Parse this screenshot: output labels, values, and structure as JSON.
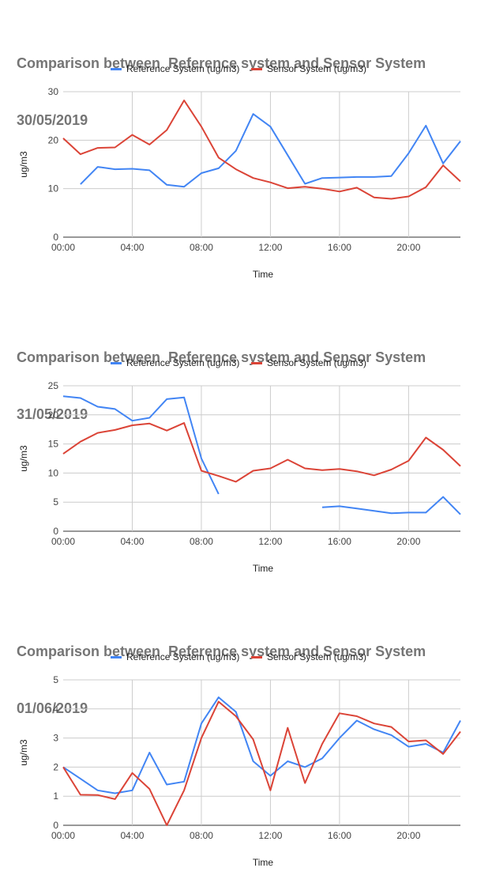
{
  "chart_data": [
    {
      "type": "line",
      "title": "Comparison between  Reference system and Sensor System",
      "subtitle": "30/05/2019",
      "xlabel": "Time",
      "ylabel": "ug/m3",
      "ylim": [
        0,
        30
      ],
      "yticks": [
        "0",
        "10",
        "20",
        "30"
      ],
      "xticks": [
        "00:00",
        "04:00",
        "08:00",
        "12:00",
        "16:00",
        "20:00"
      ],
      "x": [
        0,
        1,
        2,
        3,
        4,
        5,
        6,
        7,
        8,
        9,
        10,
        11,
        12,
        13,
        14,
        15,
        16,
        17,
        18,
        19,
        20,
        21,
        22,
        23
      ],
      "grid": true,
      "legend_position": "top",
      "series": [
        {
          "name": "Reference System (ug/m3)",
          "color": "#4285f4",
          "values": [
            null,
            10.9,
            14.5,
            14.0,
            14.1,
            13.8,
            10.8,
            10.4,
            13.2,
            14.2,
            17.8,
            25.4,
            22.8,
            16.9,
            11.0,
            12.2,
            12.3,
            12.4,
            12.4,
            12.6,
            17.3,
            23.0,
            15.2,
            19.8
          ]
        },
        {
          "name": "Sensor System (ug/m3)",
          "color": "#db4437",
          "values": [
            20.4,
            17.1,
            18.4,
            18.5,
            21.1,
            19.1,
            22.1,
            28.2,
            22.8,
            16.4,
            14.0,
            12.2,
            11.3,
            10.1,
            10.4,
            10.0,
            9.4,
            10.2,
            8.2,
            7.9,
            8.4,
            10.3,
            14.8,
            11.5
          ]
        }
      ]
    },
    {
      "type": "line",
      "title": "Comparison between  Reference system and Sensor System",
      "subtitle": "31/05/2019",
      "xlabel": "Time",
      "ylabel": "ug/m3",
      "ylim": [
        0,
        25
      ],
      "yticks": [
        "0",
        "5",
        "10",
        "15",
        "20",
        "25"
      ],
      "xticks": [
        "00:00",
        "04:00",
        "08:00",
        "12:00",
        "16:00",
        "20:00"
      ],
      "x": [
        0,
        1,
        2,
        3,
        4,
        5,
        6,
        7,
        8,
        9,
        10,
        11,
        12,
        13,
        14,
        15,
        16,
        17,
        18,
        19,
        20,
        21,
        22,
        23
      ],
      "grid": true,
      "legend_position": "top",
      "series": [
        {
          "name": "Reference System (ug/m3)",
          "color": "#4285f4",
          "values": [
            23.2,
            22.9,
            21.4,
            21.0,
            19.0,
            19.5,
            22.7,
            23.0,
            12.5,
            6.4,
            null,
            null,
            null,
            null,
            null,
            4.1,
            4.3,
            3.9,
            3.5,
            3.1,
            3.2,
            3.2,
            5.9,
            2.9
          ]
        },
        {
          "name": "Sensor System (ug/m3)",
          "color": "#db4437",
          "values": [
            13.3,
            15.4,
            16.9,
            17.4,
            18.2,
            18.5,
            17.3,
            18.6,
            10.4,
            9.5,
            8.5,
            10.4,
            10.8,
            12.3,
            10.8,
            10.5,
            10.7,
            10.3,
            9.6,
            10.6,
            12.1,
            16.1,
            14.0,
            11.2
          ]
        }
      ]
    },
    {
      "type": "line",
      "title": "Comparison between  Reference system and Sensor System",
      "subtitle": "01/06/2019",
      "xlabel": "Time",
      "ylabel": "ug/m3",
      "ylim": [
        0,
        5
      ],
      "yticks": [
        "0",
        "1",
        "2",
        "3",
        "4",
        "5"
      ],
      "xticks": [
        "00:00",
        "04:00",
        "08:00",
        "12:00",
        "16:00",
        "20:00"
      ],
      "x": [
        0,
        1,
        2,
        3,
        4,
        5,
        6,
        7,
        8,
        9,
        10,
        11,
        12,
        13,
        14,
        15,
        16,
        17,
        18,
        19,
        20,
        21,
        22,
        23
      ],
      "grid": true,
      "legend_position": "top",
      "series": [
        {
          "name": "Reference System (ug/m3)",
          "color": "#4285f4",
          "values": [
            2.0,
            1.6,
            1.2,
            1.1,
            1.2,
            2.5,
            1.4,
            1.5,
            3.5,
            4.4,
            3.9,
            2.2,
            1.7,
            2.2,
            2.0,
            2.3,
            3.0,
            3.6,
            3.3,
            3.1,
            2.7,
            2.8,
            2.5,
            3.6
          ]
        },
        {
          "name": "Sensor System (ug/m3)",
          "color": "#db4437",
          "values": [
            2.0,
            1.05,
            1.04,
            0.9,
            1.8,
            1.25,
            0.0,
            1.2,
            3.0,
            4.25,
            3.75,
            2.95,
            1.2,
            3.35,
            1.45,
            2.8,
            3.85,
            3.75,
            3.5,
            3.38,
            2.88,
            2.92,
            2.45,
            3.22
          ]
        }
      ]
    }
  ]
}
